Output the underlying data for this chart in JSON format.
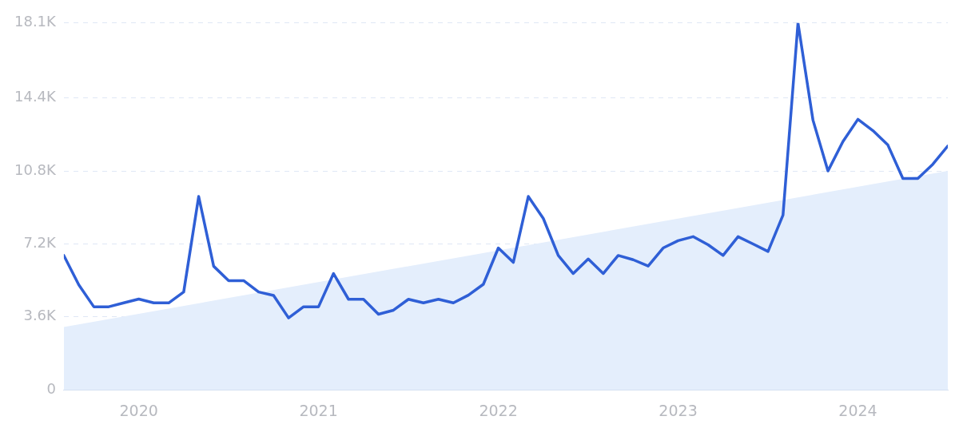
{
  "chart_data": {
    "type": "line",
    "x": [
      "2019-08",
      "2019-09",
      "2019-10",
      "2019-11",
      "2019-12",
      "2020-01",
      "2020-02",
      "2020-03",
      "2020-04",
      "2020-05",
      "2020-06",
      "2020-07",
      "2020-08",
      "2020-09",
      "2020-10",
      "2020-11",
      "2020-12",
      "2021-01",
      "2021-02",
      "2021-03",
      "2021-04",
      "2021-05",
      "2021-06",
      "2021-07",
      "2021-08",
      "2021-09",
      "2021-10",
      "2021-11",
      "2021-12",
      "2022-01",
      "2022-02",
      "2022-03",
      "2022-04",
      "2022-05",
      "2022-06",
      "2022-07",
      "2022-08",
      "2022-09",
      "2022-10",
      "2022-11",
      "2022-12",
      "2023-01",
      "2023-02",
      "2023-03",
      "2023-04",
      "2023-05",
      "2023-06",
      "2023-07",
      "2023-08",
      "2023-09",
      "2023-10",
      "2023-11",
      "2023-12",
      "2024-01",
      "2024-02",
      "2024-03",
      "2024-04",
      "2024-05",
      "2024-06",
      "2024-07"
    ],
    "series": [
      {
        "color": "#2f5fd6",
        "values": [
          6630,
          5180,
          4100,
          4100,
          4290,
          4480,
          4290,
          4290,
          4830,
          9540,
          6100,
          5390,
          5390,
          4830,
          4660,
          3550,
          4100,
          4100,
          5740,
          4470,
          4470,
          3730,
          3930,
          4470,
          4290,
          4470,
          4290,
          4670,
          5210,
          7000,
          6290,
          9540,
          8460,
          6630,
          5740,
          6460,
          5740,
          6630,
          6420,
          6110,
          7000,
          7360,
          7560,
          7160,
          6630,
          7560,
          7200,
          6830,
          8620,
          18100,
          13310,
          10800,
          12250,
          13350,
          12790,
          12080,
          10430,
          10430,
          11130,
          12030
        ]
      },
      {
        "type": "area",
        "color": "#e4eefc",
        "x": [
          "2019-08",
          "2024-07"
        ],
        "values": [
          3100,
          10800
        ]
      }
    ],
    "xlim": [
      "2019-08",
      "2024-07"
    ],
    "xticks": [
      {
        "value": "2020-01",
        "label": "2020"
      },
      {
        "value": "2021-01",
        "label": "2021"
      },
      {
        "value": "2022-01",
        "label": "2022"
      },
      {
        "value": "2023-01",
        "label": "2023"
      },
      {
        "value": "2024-01",
        "label": "2024"
      }
    ],
    "ylim": [
      0,
      18100
    ],
    "yticks": [
      0,
      {
        "value": 3600,
        "label": "3.6K"
      },
      {
        "value": 7200,
        "label": "7.2K"
      },
      {
        "value": 10800,
        "label": "10.8K"
      },
      {
        "value": 14400,
        "label": "14.4K"
      },
      {
        "value": 18100,
        "label": "18.1K"
      }
    ],
    "grid": "y",
    "legend": false,
    "marker": "none",
    "line_style": "solid"
  }
}
